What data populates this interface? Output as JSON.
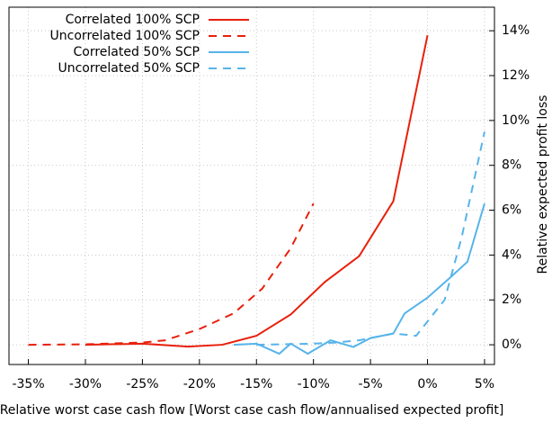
{
  "chart_data": {
    "type": "line",
    "xlabel": "Relative worst case cash flow [Worst case cash flow/annualised expected profit]",
    "ylabel": "Relative expected profit loss",
    "xlim": [
      -36.7,
      5.87
    ],
    "ylim": [
      -0.88,
      15.05
    ],
    "xticks": [
      {
        "value": -35,
        "label": "-35%"
      },
      {
        "value": -30,
        "label": "-30%"
      },
      {
        "value": -25,
        "label": "-25%"
      },
      {
        "value": -20,
        "label": "-20%"
      },
      {
        "value": -15,
        "label": "-15%"
      },
      {
        "value": -10,
        "label": "-10%"
      },
      {
        "value": -5,
        "label": "-5%"
      },
      {
        "value": 0,
        "label": "0%"
      },
      {
        "value": 5,
        "label": "5%"
      }
    ],
    "yticks": [
      {
        "value": 0,
        "label": "0%"
      },
      {
        "value": 2,
        "label": "2%"
      },
      {
        "value": 4,
        "label": "4%"
      },
      {
        "value": 6,
        "label": "6%"
      },
      {
        "value": 8,
        "label": "8%"
      },
      {
        "value": 10,
        "label": "10%"
      },
      {
        "value": 12,
        "label": "12%"
      },
      {
        "value": 14,
        "label": "14%"
      }
    ],
    "grid": true,
    "legend": "top-left",
    "y_axis_side": "right",
    "series": [
      {
        "name": "Correlated 100% SCP",
        "color": "#e8200c",
        "line_style": "solid",
        "x": [
          -30,
          -25,
          -21,
          -18,
          -15,
          -12,
          -9,
          -6,
          -3,
          0
        ],
        "values": [
          0,
          0.05,
          -0.08,
          0,
          0.4,
          1.35,
          2.8,
          3.95,
          6.4,
          13.8
        ]
      },
      {
        "name": "Uncorrelated 100% SCP",
        "color": "#e8200c",
        "line_style": "dashed",
        "x": [
          -35,
          -30,
          -25,
          -23,
          -20,
          -17,
          -14.5,
          -12,
          -10
        ],
        "values": [
          0,
          0.02,
          0.1,
          0.2,
          0.7,
          1.4,
          2.5,
          4.3,
          6.3
        ]
      },
      {
        "name": "Correlated 50% SCP",
        "color": "#56b4e9",
        "line_style": "solid",
        "x": [
          -17,
          -15,
          -13,
          -12,
          -10.5,
          -8.5,
          -6.5,
          -5,
          -3,
          -2,
          0,
          2,
          3.5,
          5
        ],
        "values": [
          0,
          0.05,
          -0.4,
          0.05,
          -0.4,
          0.2,
          -0.1,
          0.3,
          0.5,
          1.4,
          2.1,
          3,
          3.7,
          6.3
        ]
      },
      {
        "name": "Uncorrelated 50% SCP",
        "color": "#56b4e9",
        "line_style": "dashed",
        "x": [
          -15,
          -10,
          -8,
          -6,
          -3,
          -1,
          1.5,
          3,
          5
        ],
        "values": [
          0,
          0.05,
          0.1,
          0.2,
          0.5,
          0.4,
          2,
          4.8,
          9.5
        ]
      }
    ]
  }
}
